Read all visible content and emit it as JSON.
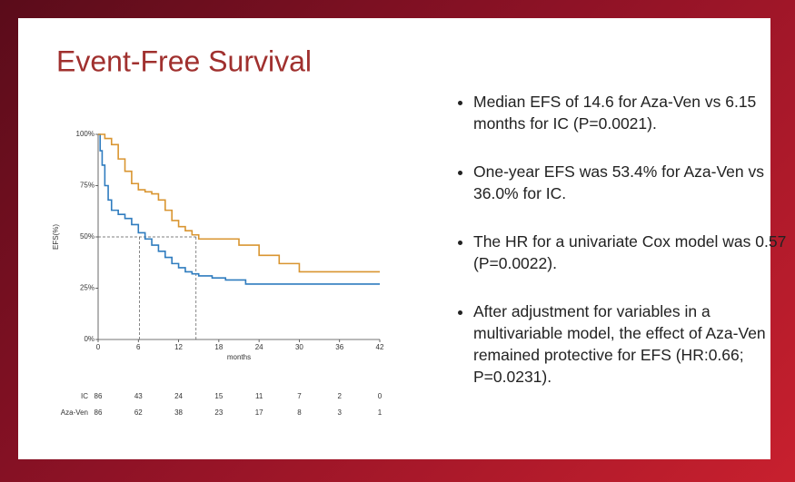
{
  "slide": {
    "title": "Event-Free Survival",
    "bullets": [
      "Median EFS of 14.6 for Aza-Ven vs 6.15 months for IC (P=0.0021).",
      "One-year EFS was 53.4% for Aza-Ven vs 36.0% for IC.",
      "The HR for a univariate Cox model was 0.57 (P=0.0022).",
      "After adjustment for variables in a multivariable model, the effect of Aza-Ven remained protective for EFS (HR:0.66; P=0.0231)."
    ]
  },
  "chart_data": {
    "type": "step",
    "x_label": "months",
    "y_label": "EFS(%)",
    "xlim": [
      0,
      42
    ],
    "ylim": [
      0,
      100
    ],
    "xticks": [
      0,
      6,
      12,
      18,
      24,
      30,
      36,
      42
    ],
    "yticks": [
      {
        "value": 0,
        "label": "0%"
      },
      {
        "value": 25,
        "label": "25%"
      },
      {
        "value": 50,
        "label": "50%"
      },
      {
        "value": 75,
        "label": "75%"
      },
      {
        "value": 100,
        "label": "100%"
      }
    ],
    "series": [
      {
        "name": "IC",
        "color": "#2f7cbf",
        "x": [
          0,
          0.3,
          0.6,
          1,
          1.5,
          2,
          3,
          4,
          5,
          6,
          7,
          8,
          9,
          10,
          11,
          12,
          13,
          14,
          15,
          17,
          19,
          22,
          42
        ],
        "values": [
          100,
          92,
          85,
          75,
          68,
          63,
          61,
          59,
          56,
          52,
          49,
          46,
          43,
          40,
          37,
          35,
          33,
          32,
          31,
          30,
          29,
          27,
          27
        ]
      },
      {
        "name": "Aza-Ven",
        "color": "#d99530",
        "x": [
          0,
          1,
          2,
          3,
          4,
          5,
          6,
          7,
          8,
          9,
          10,
          11,
          12,
          13,
          14,
          15,
          19,
          21,
          24,
          27,
          30,
          42
        ],
        "values": [
          100,
          98,
          95,
          88,
          82,
          76,
          73,
          72,
          71,
          68,
          63,
          58,
          55,
          53,
          51,
          49,
          49,
          46,
          41,
          37,
          33,
          33
        ]
      }
    ],
    "median_lines": {
      "y": 50,
      "x": [
        6.15,
        14.6
      ]
    },
    "risk_table": [
      {
        "name": "IC",
        "values": [
          86,
          43,
          24,
          15,
          11,
          7,
          2,
          0
        ]
      },
      {
        "name": "Aza-Ven",
        "values": [
          86,
          62,
          38,
          23,
          17,
          8,
          3,
          1
        ]
      }
    ]
  }
}
